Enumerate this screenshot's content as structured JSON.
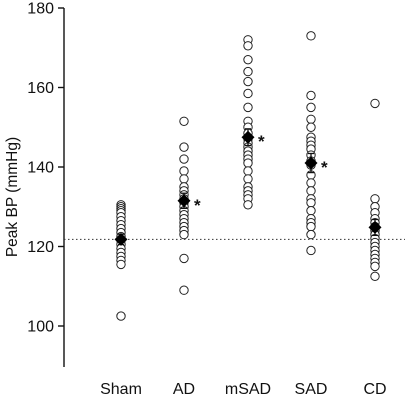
{
  "chart_data": {
    "type": "scatter",
    "title": "",
    "ylabel": "Peak BP (mmHg)",
    "xlabel": "",
    "ylim": [
      95,
      180
    ],
    "yticks": [
      100,
      120,
      140,
      160,
      180
    ],
    "categories": [
      "Sham",
      "AD",
      "mSAD",
      "SAD",
      "CD"
    ],
    "reference_line": 121.8,
    "groups": [
      {
        "category": "Sham",
        "points": [
          130.5,
          130,
          129.5,
          129,
          128.5,
          127.5,
          126.5,
          125.5,
          124.5,
          123.5,
          122.5,
          121.5,
          120.5,
          119.5,
          118.5,
          117.5,
          116.5,
          115.5,
          102.5
        ],
        "mean": 121.8,
        "sem": 1.3,
        "significant": false
      },
      {
        "category": "AD",
        "points": [
          151.5,
          145,
          142,
          139,
          137,
          135,
          134,
          133,
          132,
          131,
          130,
          129,
          128,
          127,
          126,
          125,
          124,
          123,
          117,
          109
        ],
        "mean": 131.5,
        "sem": 1.9,
        "significant": true
      },
      {
        "category": "mSAD",
        "points": [
          172,
          170.5,
          167,
          164,
          161.5,
          158.5,
          155,
          151.5,
          150,
          148.5,
          147,
          146,
          145,
          144,
          143,
          142,
          141,
          139,
          137,
          135,
          134,
          133,
          132,
          130.5
        ],
        "mean": 147.5,
        "sem": 2.1,
        "significant": true
      },
      {
        "category": "SAD",
        "points": [
          173,
          158,
          155,
          152,
          150,
          147.5,
          146.5,
          145.5,
          144.5,
          143,
          141.5,
          140.5,
          138,
          136,
          134,
          132,
          131,
          129,
          127,
          126,
          125,
          123,
          119
        ],
        "mean": 141,
        "sem": 2.4,
        "significant": true
      },
      {
        "category": "CD",
        "points": [
          156,
          132,
          130,
          128.5,
          127,
          126,
          125,
          124,
          123,
          122,
          121,
          120,
          119,
          118,
          117,
          116,
          115,
          112.5
        ],
        "mean": 124.8,
        "sem": 2.0,
        "significant": false
      }
    ],
    "significance_marker": "*",
    "grid": false,
    "legend": "none"
  }
}
